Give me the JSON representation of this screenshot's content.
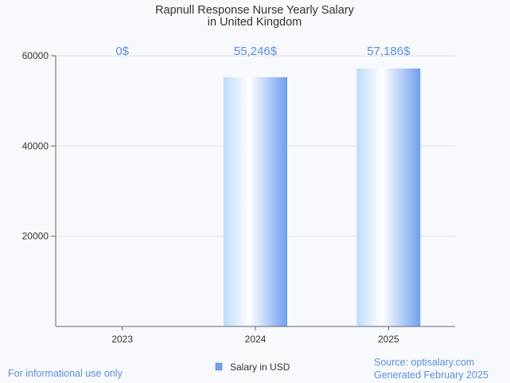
{
  "chart_data": {
    "type": "bar",
    "title_lines": [
      "Rapnull Response Nurse Yearly Salary",
      "in United Kingdom"
    ],
    "categories": [
      "2023",
      "2024",
      "2025"
    ],
    "series": [
      {
        "name": "Salary in USD",
        "values": [
          0,
          55246,
          57186
        ],
        "labels": [
          "0$",
          "55,246$",
          "57,186$"
        ]
      }
    ],
    "ylim": [
      0,
      60000
    ],
    "yticks": [
      20000,
      40000,
      60000
    ],
    "ytick_labels": [
      "20000",
      "40000",
      "60000"
    ],
    "grid": true,
    "legend_position": "bottom-center",
    "colors": {
      "bar_edge": "#6f9ff0",
      "bar_light": "#ffffff",
      "bar_tint": "#bcdcfb",
      "label": "#5a8fd6",
      "legend_swatch": "#6f9ff0"
    }
  },
  "footer": {
    "disclaimer": "For informational use only",
    "source": "Source: optisalary.com",
    "generated": "Generated February 2025"
  }
}
